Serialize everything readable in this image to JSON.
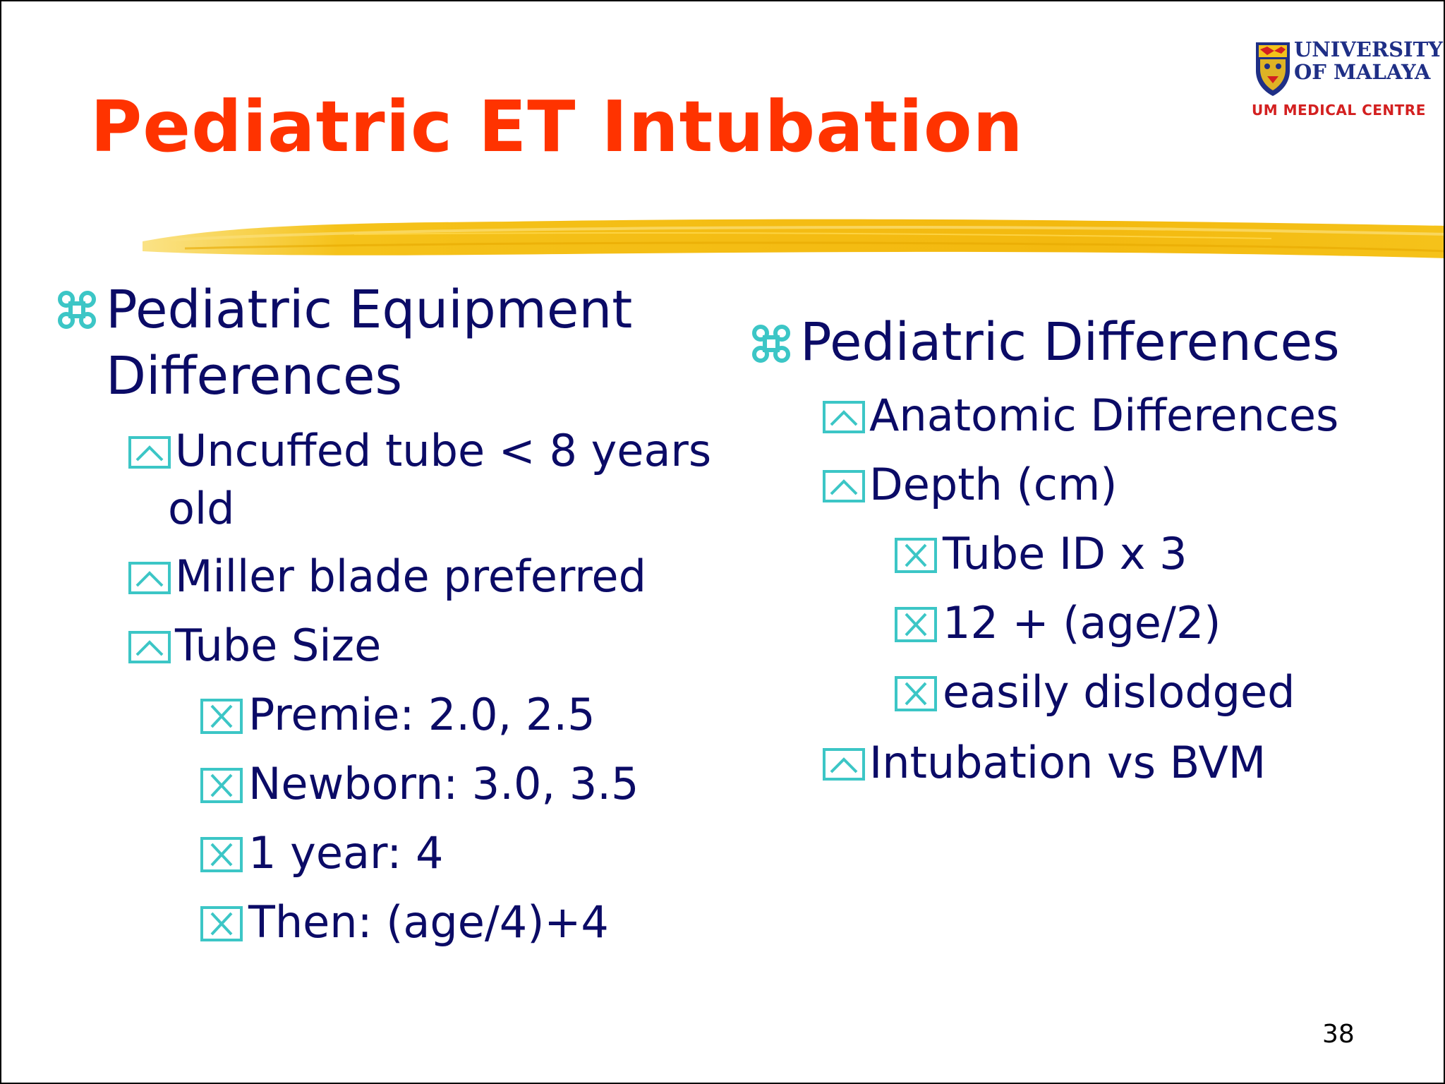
{
  "slide": {
    "title": "Pediatric ET Intubation",
    "page_number": "38"
  },
  "logo": {
    "line1": "UNIVERSITY",
    "line2": "OF MALAYA",
    "line3": "UM MEDICAL CENTRE"
  },
  "left": {
    "heading_line1": "Pediatric Equipment",
    "heading_line2": "Differences",
    "items": [
      {
        "line1": "Uncuffed tube < 8 years",
        "line2": "old"
      },
      {
        "line1": "Miller blade preferred"
      },
      {
        "line1": "Tube Size"
      }
    ],
    "subitems": [
      "Premie: 2.0, 2.5",
      "Newborn: 3.0, 3.5",
      "1 year: 4",
      "Then: (age/4)+4"
    ]
  },
  "right": {
    "heading": "Pediatric Differences",
    "items": [
      "Anatomic Differences",
      "Depth (cm)",
      "Intubation vs BVM"
    ],
    "subitems": [
      "Tube ID x 3",
      "12 + (age/2)",
      "easily dislodged"
    ]
  },
  "icons": {
    "level1": "command-key-icon",
    "level2": "chevron-up-box-icon",
    "level3": "x-box-icon"
  },
  "colors": {
    "title": "#ff3300",
    "text": "#0b0b66",
    "bullet": "#3cc6c6",
    "brush": "#f5c21a"
  }
}
